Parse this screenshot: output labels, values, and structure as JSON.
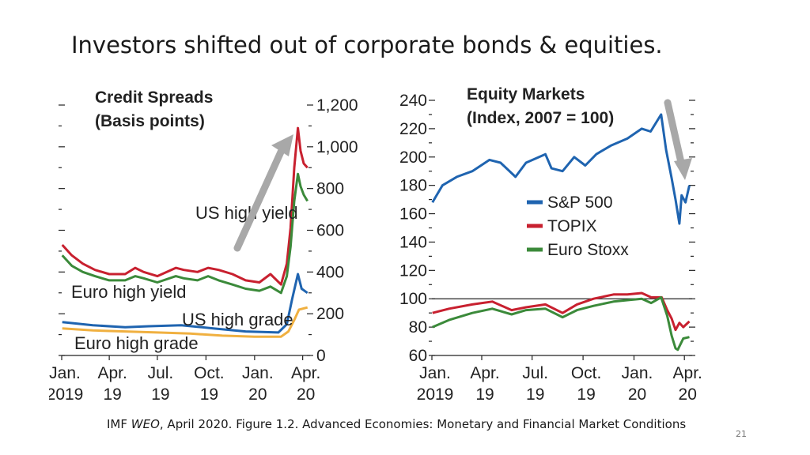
{
  "slide": {
    "title": "Investors shifted out of corporate bonds & equities.",
    "caption_prefix": "IMF ",
    "caption_italic": "WEO",
    "caption_suffix": ", April 2020.  Figure 1.2. Advanced Economies: Monetary and Financial Market Conditions",
    "page_number": "21",
    "arrow_color": "#a8a8a8"
  },
  "chart_data": [
    {
      "type": "line",
      "title": "Credit Spreads",
      "subtitle": "(Basis points)",
      "ylim": [
        0,
        1200
      ],
      "y_ticks": [
        "0",
        "200",
        "400",
        "600",
        "800",
        "1,000",
        "1,200"
      ],
      "x_ticks": [
        [
          "Jan.",
          "2019"
        ],
        [
          "Apr.",
          "19"
        ],
        [
          "Jul.",
          "19"
        ],
        [
          "Oct.",
          "19"
        ],
        [
          "Jan.",
          "20"
        ],
        [
          "Apr.",
          "20"
        ]
      ],
      "xlim": [
        "2019-01-01",
        "2020-04-15"
      ],
      "series": [
        {
          "name": "US high yield",
          "color": "#c8202f",
          "x": [
            "2019-01-02",
            "2019-01-20",
            "2019-02-10",
            "2019-03-05",
            "2019-04-01",
            "2019-05-01",
            "2019-05-20",
            "2019-06-05",
            "2019-07-01",
            "2019-08-05",
            "2019-08-20",
            "2019-09-15",
            "2019-10-05",
            "2019-10-25",
            "2019-11-20",
            "2019-12-15",
            "2020-01-10",
            "2020-01-31",
            "2020-02-20",
            "2020-03-02",
            "2020-03-09",
            "2020-03-16",
            "2020-03-23",
            "2020-03-28",
            "2020-04-03",
            "2020-04-10"
          ],
          "values": [
            530,
            480,
            440,
            410,
            390,
            390,
            420,
            400,
            380,
            420,
            410,
            400,
            420,
            410,
            390,
            360,
            350,
            390,
            340,
            440,
            610,
            900,
            1090,
            980,
            920,
            900
          ]
        },
        {
          "name": "Euro high yield",
          "color": "#3b8a3a",
          "x": [
            "2019-01-02",
            "2019-01-20",
            "2019-02-10",
            "2019-03-05",
            "2019-04-01",
            "2019-05-01",
            "2019-05-20",
            "2019-06-05",
            "2019-07-01",
            "2019-08-05",
            "2019-08-20",
            "2019-09-15",
            "2019-10-05",
            "2019-10-25",
            "2019-11-20",
            "2019-12-15",
            "2020-01-10",
            "2020-01-31",
            "2020-02-20",
            "2020-03-02",
            "2020-03-09",
            "2020-03-16",
            "2020-03-23",
            "2020-03-28",
            "2020-04-03",
            "2020-04-10"
          ],
          "values": [
            480,
            430,
            400,
            380,
            360,
            360,
            380,
            370,
            350,
            380,
            370,
            360,
            380,
            360,
            340,
            320,
            310,
            330,
            300,
            380,
            520,
            740,
            870,
            810,
            770,
            740
          ]
        },
        {
          "name": "US high grade",
          "color": "#1f64b0",
          "x": [
            "2019-01-02",
            "2019-03-01",
            "2019-05-01",
            "2019-06-15",
            "2019-08-15",
            "2019-10-15",
            "2019-12-15",
            "2020-02-15",
            "2020-03-02",
            "2020-03-12",
            "2020-03-23",
            "2020-03-30",
            "2020-04-10"
          ],
          "values": [
            160,
            145,
            135,
            140,
            145,
            130,
            115,
            110,
            150,
            270,
            390,
            320,
            300
          ]
        },
        {
          "name": "Euro high grade",
          "color": "#f0b040",
          "x": [
            "2019-01-02",
            "2019-03-01",
            "2019-05-01",
            "2019-07-01",
            "2019-09-01",
            "2019-11-01",
            "2020-01-01",
            "2020-02-20",
            "2020-03-05",
            "2020-03-16",
            "2020-03-25",
            "2020-04-10"
          ],
          "values": [
            130,
            120,
            115,
            110,
            105,
            95,
            90,
            90,
            115,
            170,
            220,
            230
          ]
        }
      ]
    },
    {
      "type": "line",
      "title": "Equity Markets",
      "subtitle": "(Index, 2007 = 100)",
      "ylim": [
        60,
        240
      ],
      "y_ticks": [
        "60",
        "80",
        "100",
        "120",
        "140",
        "160",
        "180",
        "200",
        "220",
        "240"
      ],
      "x_ticks": [
        [
          "Jan.",
          "2019"
        ],
        [
          "Apr.",
          "19"
        ],
        [
          "Jul.",
          "19"
        ],
        [
          "Oct.",
          "19"
        ],
        [
          "Jan.",
          "20"
        ],
        [
          "Apr.",
          "20"
        ]
      ],
      "xlim": [
        "2019-01-01",
        "2020-04-15"
      ],
      "reference_line": 100,
      "legend": "right-center",
      "series": [
        {
          "name": "S&P 500",
          "color": "#1f64b0",
          "x": [
            "2019-01-02",
            "2019-01-20",
            "2019-02-15",
            "2019-03-15",
            "2019-04-15",
            "2019-05-05",
            "2019-06-01",
            "2019-06-20",
            "2019-07-25",
            "2019-08-05",
            "2019-08-25",
            "2019-09-15",
            "2019-10-05",
            "2019-10-25",
            "2019-11-20",
            "2019-12-20",
            "2020-01-15",
            "2020-01-31",
            "2020-02-19",
            "2020-02-28",
            "2020-03-09",
            "2020-03-16",
            "2020-03-23",
            "2020-03-27",
            "2020-04-03",
            "2020-04-10"
          ],
          "values": [
            168,
            180,
            186,
            190,
            198,
            196,
            186,
            196,
            202,
            192,
            190,
            200,
            194,
            202,
            208,
            213,
            220,
            218,
            230,
            205,
            185,
            170,
            153,
            173,
            168,
            180
          ]
        },
        {
          "name": "TOPIX",
          "color": "#c8202f",
          "x": [
            "2019-01-02",
            "2019-02-01",
            "2019-03-15",
            "2019-04-20",
            "2019-05-25",
            "2019-06-20",
            "2019-07-25",
            "2019-08-25",
            "2019-09-20",
            "2019-10-20",
            "2019-11-25",
            "2019-12-20",
            "2020-01-15",
            "2020-02-01",
            "2020-02-20",
            "2020-03-01",
            "2020-03-09",
            "2020-03-16",
            "2020-03-23",
            "2020-03-30",
            "2020-04-10"
          ],
          "values": [
            90,
            93,
            96,
            98,
            92,
            94,
            96,
            90,
            96,
            100,
            103,
            103,
            104,
            101,
            101,
            92,
            86,
            78,
            83,
            80,
            84
          ]
        },
        {
          "name": "Euro Stoxx",
          "color": "#3b8a3a",
          "x": [
            "2019-01-02",
            "2019-02-01",
            "2019-03-15",
            "2019-04-20",
            "2019-05-25",
            "2019-06-20",
            "2019-07-25",
            "2019-08-25",
            "2019-09-20",
            "2019-10-20",
            "2019-11-25",
            "2019-12-20",
            "2020-01-15",
            "2020-02-01",
            "2020-02-19",
            "2020-03-01",
            "2020-03-09",
            "2020-03-16",
            "2020-03-20",
            "2020-03-30",
            "2020-04-10"
          ],
          "values": [
            80,
            85,
            90,
            93,
            89,
            92,
            93,
            87,
            92,
            95,
            98,
            99,
            100,
            97,
            101,
            88,
            74,
            65,
            64,
            72,
            73
          ]
        }
      ]
    }
  ]
}
